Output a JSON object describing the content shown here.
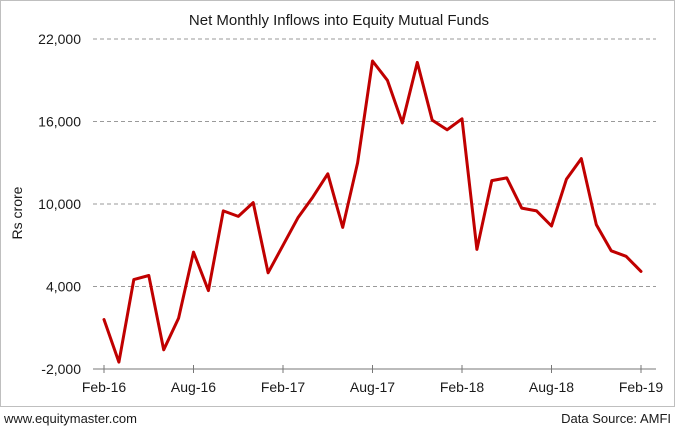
{
  "chart_data": {
    "type": "line",
    "title": "Net Monthly Inflows into Equity Mutual Funds",
    "xlabel": "",
    "ylabel": "Rs crore",
    "ylim": [
      -2000,
      22000
    ],
    "yticks": [
      -2000,
      4000,
      10000,
      16000,
      22000
    ],
    "ytick_labels": [
      "-2,000",
      "4,000",
      "10,000",
      "16,000",
      "22,000"
    ],
    "xtick_labels": [
      "Feb-16",
      "Aug-16",
      "Feb-17",
      "Aug-17",
      "Feb-18",
      "Aug-18",
      "Feb-19"
    ],
    "xtick_positions": [
      0,
      6,
      12,
      18,
      24,
      30,
      36
    ],
    "grid": "horizontal-dashed",
    "line_color": "#c00000",
    "x": [
      "Feb-16",
      "Mar-16",
      "Apr-16",
      "May-16",
      "Jun-16",
      "Jul-16",
      "Aug-16",
      "Sep-16",
      "Oct-16",
      "Nov-16",
      "Dec-16",
      "Jan-17",
      "Feb-17",
      "Mar-17",
      "Apr-17",
      "May-17",
      "Jun-17",
      "Jul-17",
      "Aug-17",
      "Sep-17",
      "Oct-17",
      "Nov-17",
      "Dec-17",
      "Jan-18",
      "Feb-18",
      "Mar-18",
      "Apr-18",
      "May-18",
      "Jun-18",
      "Jul-18",
      "Aug-18",
      "Sep-18",
      "Oct-18",
      "Nov-18",
      "Dec-18",
      "Jan-19",
      "Feb-19"
    ],
    "series": [
      {
        "values": [
          1600,
          -1500,
          4500,
          4800,
          -600,
          1700,
          6500,
          3700,
          9500,
          9100,
          10100,
          5000,
          7000,
          9000,
          10500,
          12200,
          8300,
          13000,
          20400,
          19000,
          15900,
          20300,
          16100,
          15400,
          16200,
          6700,
          11700,
          11900,
          9700,
          9500,
          8400,
          11800,
          13300,
          8500,
          6600,
          6200,
          5100
        ]
      }
    ]
  },
  "footer": {
    "website": "www.equitymaster.com",
    "source": "Data Source: AMFI"
  }
}
